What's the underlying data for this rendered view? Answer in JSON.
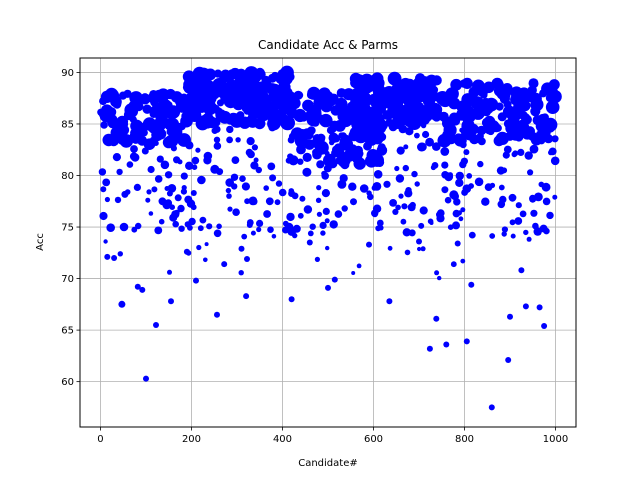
{
  "chart_data": {
    "type": "scatter",
    "title": "Candidate Acc & Parms",
    "xlabel": "Candidate#",
    "ylabel": "Acc",
    "xlim": [
      -45,
      1045
    ],
    "ylim": [
      55.6,
      91.4
    ],
    "xticks": [
      0,
      200,
      400,
      600,
      800,
      1000
    ],
    "yticks": [
      60,
      65,
      70,
      75,
      80,
      85,
      90
    ],
    "grid": true,
    "legend": "none",
    "marker_color": "#0000ff",
    "size_encodes": "Parms",
    "seed": 1234,
    "outliers": [
      {
        "x": 100,
        "y": 60.3,
        "size": 3
      },
      {
        "x": 860,
        "y": 57.5,
        "size": 3
      },
      {
        "x": 896,
        "y": 62.1,
        "size": 3
      },
      {
        "x": 724,
        "y": 63.2,
        "size": 3
      },
      {
        "x": 760,
        "y": 63.6,
        "size": 3
      },
      {
        "x": 805,
        "y": 63.9,
        "size": 3
      },
      {
        "x": 975,
        "y": 65.4,
        "size": 3
      },
      {
        "x": 122,
        "y": 65.5,
        "size": 3
      },
      {
        "x": 738,
        "y": 66.1,
        "size": 3
      },
      {
        "x": 256,
        "y": 66.5,
        "size": 3
      },
      {
        "x": 900,
        "y": 66.3,
        "size": 3
      },
      {
        "x": 935,
        "y": 67.3,
        "size": 3
      },
      {
        "x": 965,
        "y": 67.2,
        "size": 3
      },
      {
        "x": 47,
        "y": 67.5,
        "size": 3.5
      },
      {
        "x": 155,
        "y": 67.8,
        "size": 3
      },
      {
        "x": 420,
        "y": 68.0,
        "size": 3
      },
      {
        "x": 635,
        "y": 67.8,
        "size": 3
      },
      {
        "x": 320,
        "y": 68.3,
        "size": 3
      },
      {
        "x": 82,
        "y": 69.2,
        "size": 3
      },
      {
        "x": 92,
        "y": 68.9,
        "size": 3
      },
      {
        "x": 500,
        "y": 69.1,
        "size": 3
      },
      {
        "x": 515,
        "y": 69.9,
        "size": 3
      },
      {
        "x": 210,
        "y": 69.8,
        "size": 3
      },
      {
        "x": 815,
        "y": 69.4,
        "size": 3
      },
      {
        "x": 925,
        "y": 70.8,
        "size": 3
      },
      {
        "x": 272,
        "y": 71.4,
        "size": 3
      },
      {
        "x": 322,
        "y": 71.9,
        "size": 3
      },
      {
        "x": 15,
        "y": 72.1,
        "size": 3
      },
      {
        "x": 30,
        "y": 72.0,
        "size": 3
      },
      {
        "x": 190,
        "y": 72.6,
        "size": 3
      },
      {
        "x": 310,
        "y": 72.9,
        "size": 3
      },
      {
        "x": 590,
        "y": 73.3,
        "size": 3
      },
      {
        "x": 700,
        "y": 73.6,
        "size": 3
      },
      {
        "x": 785,
        "y": 73.4,
        "size": 3
      },
      {
        "x": 460,
        "y": 73.5,
        "size": 3
      }
    ],
    "clusters": [
      {
        "x": [
          190,
          420
        ],
        "y": [
          85,
          90
        ],
        "n": 190,
        "size": [
          3.5,
          7.5
        ]
      },
      {
        "x": [
          560,
          740
        ],
        "y": [
          85,
          89.5
        ],
        "n": 150,
        "size": [
          3.5,
          7
        ]
      },
      {
        "x": [
          0,
          200
        ],
        "y": [
          83,
          88
        ],
        "n": 100,
        "size": [
          3.5,
          7
        ]
      },
      {
        "x": [
          740,
          1000
        ],
        "y": [
          83,
          89
        ],
        "n": 140,
        "size": [
          3.5,
          7
        ]
      },
      {
        "x": [
          420,
          620
        ],
        "y": [
          81,
          88
        ],
        "n": 130,
        "size": [
          3.5,
          7
        ]
      },
      {
        "x": [
          0,
          1000
        ],
        "y": [
          74,
          85
        ],
        "n": 300,
        "size": [
          2.5,
          4.5
        ]
      },
      {
        "x": [
          0,
          1000
        ],
        "y": [
          70,
          77
        ],
        "n": 40,
        "size": [
          2,
          3
        ]
      }
    ]
  }
}
